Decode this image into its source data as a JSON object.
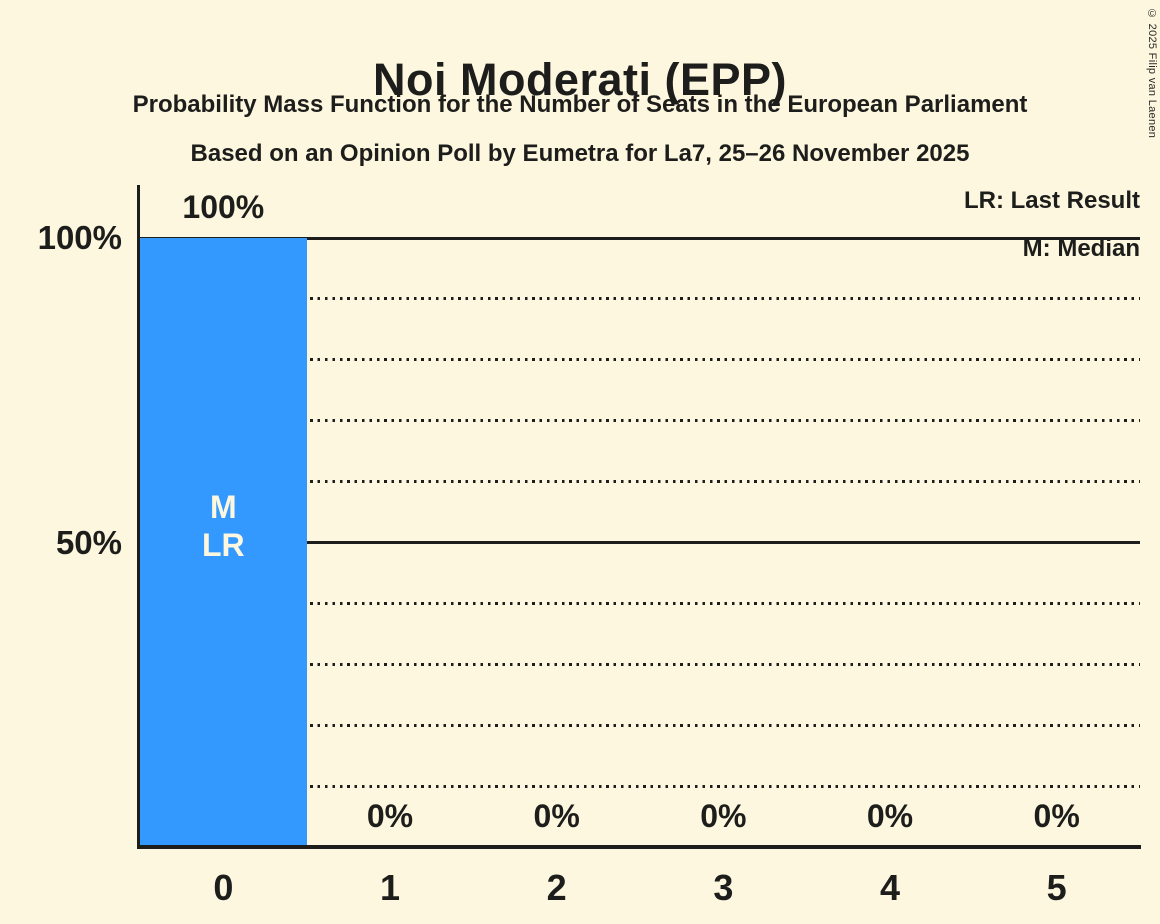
{
  "page": {
    "background_color": "#FCF7DE",
    "ink_color": "#1D1D1B",
    "copyright": "© 2025 Filip van Laenen"
  },
  "chart_data": {
    "type": "bar",
    "title": "Noi Moderati (EPP)",
    "subtitle": "Probability Mass Function for the Number of Seats in the European Parliament",
    "source_line": "Based on an Opinion Poll by Eumetra for La7, 25–26 November 2025",
    "categories": [
      "0",
      "1",
      "2",
      "3",
      "4",
      "5"
    ],
    "values": [
      100,
      0,
      0,
      0,
      0,
      0
    ],
    "value_labels": [
      "100%",
      "0%",
      "0%",
      "0%",
      "0%",
      "0%"
    ],
    "bar_color": "#3399FF",
    "bar_annotations": [
      {
        "category": "0",
        "lines": [
          "M",
          "LR"
        ]
      }
    ],
    "legend": [
      {
        "abbr": "LR",
        "label": "LR: Last Result"
      },
      {
        "abbr": "M",
        "label": "M: Median"
      }
    ],
    "ylim": [
      0,
      100
    ],
    "ytick_labels": [
      {
        "pct": 100,
        "label": "100%"
      },
      {
        "pct": 50,
        "label": "50%"
      }
    ],
    "solid_gridlines_pct": [
      100,
      50
    ],
    "dotted_gridlines_pct": [
      90,
      80,
      70,
      60,
      40,
      30,
      20,
      10
    ],
    "grid": "horizontal",
    "legend_position": "top-right"
  }
}
